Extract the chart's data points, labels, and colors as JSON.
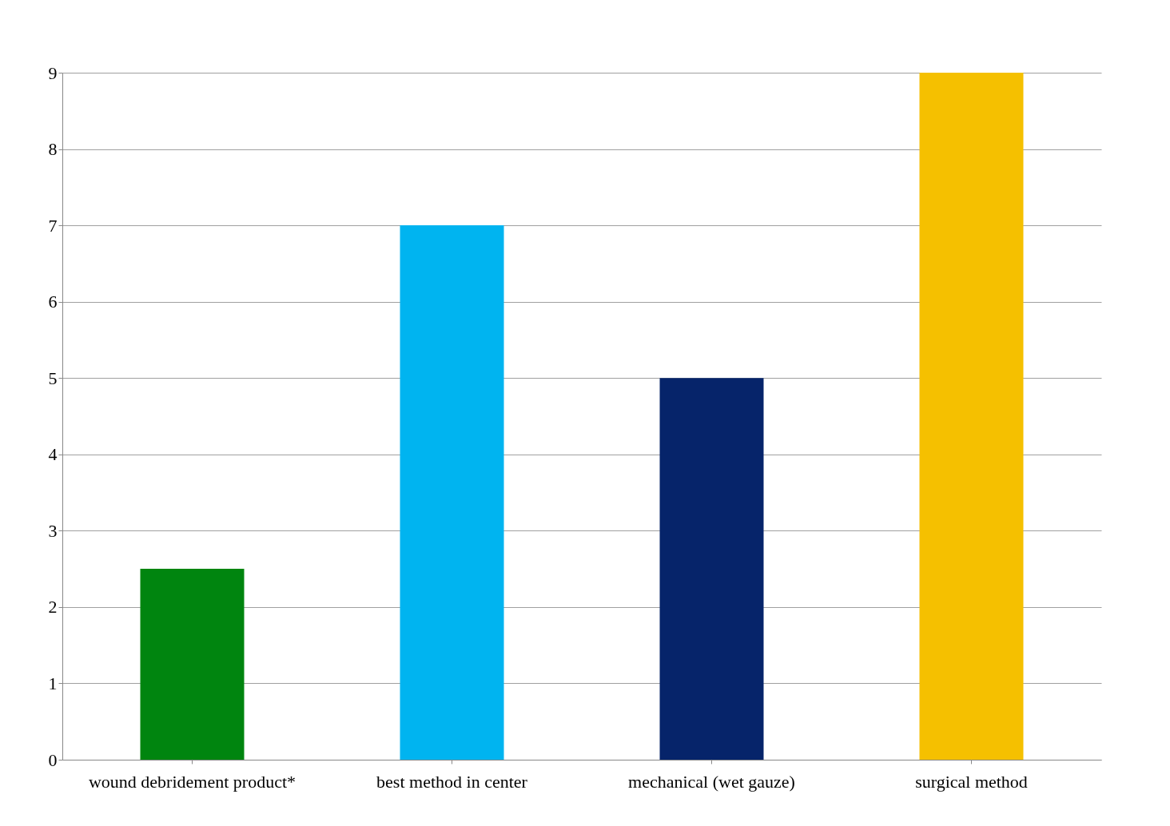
{
  "chart_data": {
    "type": "bar",
    "categories": [
      "wound debridement product*",
      "best method in center",
      "mechanical (wet gauze)",
      "surgical method"
    ],
    "values": [
      2.5,
      7,
      5,
      9
    ],
    "colors": [
      "#00850f",
      "#00b4f0",
      "#06246a",
      "#f5c000"
    ],
    "ylim": [
      0,
      9
    ],
    "yticks": [
      0,
      1,
      2,
      3,
      4,
      5,
      6,
      7,
      8,
      9
    ],
    "grid": "y"
  }
}
